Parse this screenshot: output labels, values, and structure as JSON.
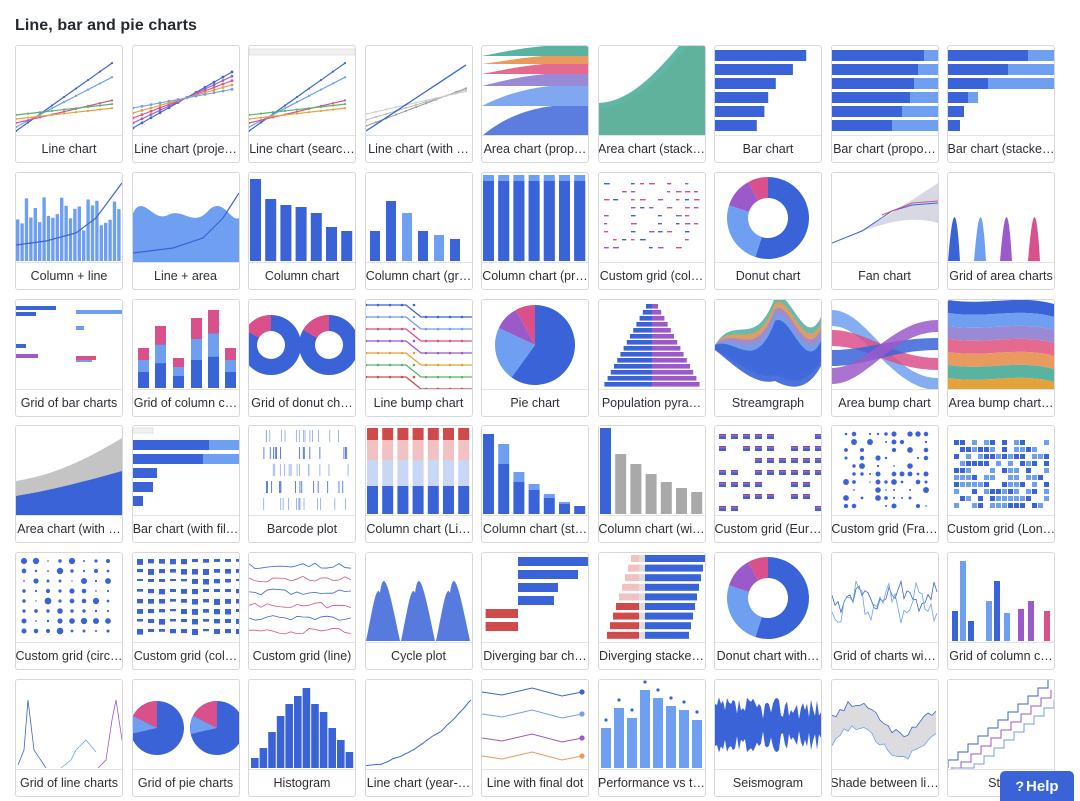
{
  "section": {
    "title": "Line, bar and pie charts"
  },
  "help": {
    "label": "Help",
    "icon": "help-question-icon"
  },
  "palette": {
    "blue": "#3a63d8",
    "lightblue": "#6f9ff0",
    "pink": "#d9508a",
    "purple": "#9b59c9",
    "gray": "#a9a9a9",
    "red": "#cf4b4b"
  },
  "cards": [
    {
      "label": "Line chart",
      "thumb": "line"
    },
    {
      "label": "Line chart (proje…",
      "thumb": "line-dots"
    },
    {
      "label": "Line chart (searc…",
      "thumb": "line-search"
    },
    {
      "label": "Line chart (with …",
      "thumb": "line-gray"
    },
    {
      "label": "Area chart (prop…",
      "thumb": "area-prop"
    },
    {
      "label": "Area chart (stack…",
      "thumb": "area-stack"
    },
    {
      "label": "Bar chart",
      "thumb": "bar"
    },
    {
      "label": "Bar chart (propo…",
      "thumb": "bar-prop"
    },
    {
      "label": "Bar chart (stacke…",
      "thumb": "bar-stack"
    },
    {
      "label": "Column + line",
      "thumb": "column-line"
    },
    {
      "label": "Line + area",
      "thumb": "line-area"
    },
    {
      "label": "Column chart",
      "thumb": "column"
    },
    {
      "label": "Column chart (gr…",
      "thumb": "column-grouped"
    },
    {
      "label": "Column chart (pr…",
      "thumb": "column-prop"
    },
    {
      "label": "Custom grid (col…",
      "thumb": "custom-grid-dots"
    },
    {
      "label": "Donut chart",
      "thumb": "donut"
    },
    {
      "label": "Fan chart",
      "thumb": "fan"
    },
    {
      "label": "Grid of area charts",
      "thumb": "grid-area"
    },
    {
      "label": "Grid of bar charts",
      "thumb": "grid-bar"
    },
    {
      "label": "Grid of column c…",
      "thumb": "grid-column"
    },
    {
      "label": "Grid of donut ch…",
      "thumb": "grid-donut"
    },
    {
      "label": "Line bump chart",
      "thumb": "line-bump"
    },
    {
      "label": "Pie chart",
      "thumb": "pie"
    },
    {
      "label": "Population pyra…",
      "thumb": "pyramid"
    },
    {
      "label": "Streamgraph",
      "thumb": "stream"
    },
    {
      "label": "Area bump chart",
      "thumb": "area-bump"
    },
    {
      "label": "Area bump chart…",
      "thumb": "area-bump2"
    },
    {
      "label": "Area chart (with …",
      "thumb": "area-gray"
    },
    {
      "label": "Bar chart (with fil…",
      "thumb": "bar-filter"
    },
    {
      "label": "Barcode plot",
      "thumb": "barcode"
    },
    {
      "label": "Column chart (Li…",
      "thumb": "column-likert"
    },
    {
      "label": "Column chart (st…",
      "thumb": "column-stack"
    },
    {
      "label": "Column chart (wi…",
      "thumb": "column-gray"
    },
    {
      "label": "Custom grid (Eur…",
      "thumb": "custom-eur"
    },
    {
      "label": "Custom grid (Fra…",
      "thumb": "custom-fra"
    },
    {
      "label": "Custom grid (Lon…",
      "thumb": "custom-lon"
    },
    {
      "label": "Custom grid (circ…",
      "thumb": "custom-circ"
    },
    {
      "label": "Custom grid (col…",
      "thumb": "custom-col"
    },
    {
      "label": "Custom grid (line)",
      "thumb": "custom-line"
    },
    {
      "label": "Cycle plot",
      "thumb": "cycle"
    },
    {
      "label": "Diverging bar ch…",
      "thumb": "diverging"
    },
    {
      "label": "Diverging stacke…",
      "thumb": "diverging-stack"
    },
    {
      "label": "Donut chart with…",
      "thumb": "donut2"
    },
    {
      "label": "Grid of charts wi…",
      "thumb": "grid-charts"
    },
    {
      "label": "Grid of column c…",
      "thumb": "grid-column2"
    },
    {
      "label": "Grid of line charts",
      "thumb": "grid-line"
    },
    {
      "label": "Grid of pie charts",
      "thumb": "grid-pie"
    },
    {
      "label": "Histogram",
      "thumb": "histogram"
    },
    {
      "label": "Line chart (year-…",
      "thumb": "line-year"
    },
    {
      "label": "Line with final dot",
      "thumb": "line-final"
    },
    {
      "label": "Performance vs t…",
      "thumb": "performance"
    },
    {
      "label": "Seismogram",
      "thumb": "seismogram"
    },
    {
      "label": "Shade between li…",
      "thumb": "shade"
    },
    {
      "label": "Step",
      "thumb": "step"
    }
  ]
}
